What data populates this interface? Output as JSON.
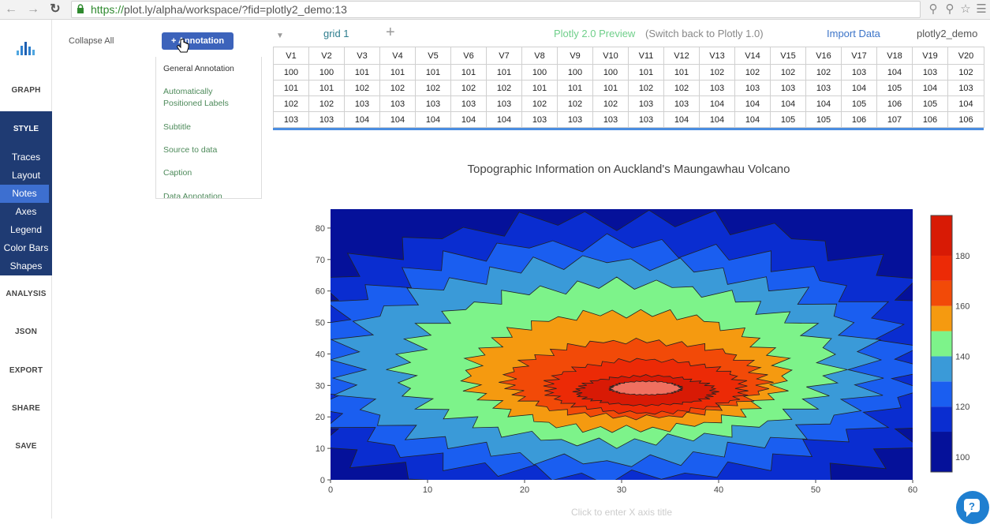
{
  "browser": {
    "url_scheme": "https://",
    "url_rest": "plot.ly/alpha/workspace/?fid=plotly2_demo:13",
    "back_icon": "back-arrow-icon",
    "forward_icon": "forward-arrow-icon",
    "reload_icon": "reload-icon"
  },
  "left_nav": {
    "graph": "GRAPH",
    "style": "STYLE",
    "style_items": [
      "Traces",
      "Layout",
      "Notes",
      "Axes",
      "Legend",
      "Color Bars",
      "Shapes"
    ],
    "active_item": "Notes",
    "analysis": "ANALYSIS",
    "json": "JSON",
    "export": "EXPORT",
    "share": "SHARE",
    "save": "SAVE"
  },
  "notes_panel": {
    "collapse_all": "Collapse All",
    "add_annotation": "+ Annotation",
    "menu_items": [
      "General Annotation",
      "Automatically Positioned Labels",
      "Subtitle",
      "Source to data",
      "Caption",
      "Data Annotation"
    ]
  },
  "grid_header": {
    "grid_name": "grid 1",
    "preview": "Plotly 2.0 Preview",
    "switch_back": "(Switch back to Plotly 1.0)",
    "import_data": "Import Data",
    "user": "plotly2_demo"
  },
  "grid": {
    "columns": [
      "V1",
      "V2",
      "V3",
      "V4",
      "V5",
      "V6",
      "V7",
      "V8",
      "V9",
      "V10",
      "V11",
      "V12",
      "V13",
      "V14",
      "V15",
      "V16",
      "V17",
      "V18",
      "V19",
      "V20"
    ],
    "rows": [
      [
        100,
        100,
        101,
        101,
        101,
        101,
        101,
        100,
        100,
        100,
        101,
        101,
        102,
        102,
        102,
        102,
        103,
        104,
        103,
        102
      ],
      [
        101,
        101,
        102,
        102,
        102,
        102,
        102,
        101,
        101,
        101,
        102,
        102,
        103,
        103,
        103,
        103,
        104,
        105,
        104,
        103
      ],
      [
        102,
        102,
        103,
        103,
        103,
        103,
        103,
        102,
        102,
        102,
        103,
        103,
        104,
        104,
        104,
        104,
        105,
        106,
        105,
        104
      ],
      [
        103,
        103,
        104,
        104,
        104,
        104,
        104,
        103,
        103,
        103,
        103,
        104,
        104,
        104,
        105,
        105,
        106,
        107,
        106,
        106
      ]
    ]
  },
  "chart_data": {
    "type": "contour",
    "title": "Topographic Information on Auckland's Maungawhau Volcano",
    "xlabel_placeholder": "Click to enter X axis title",
    "x_range": [
      0,
      60
    ],
    "y_range": [
      0,
      86
    ],
    "x_ticks": [
      "0",
      "10",
      "20",
      "30",
      "40",
      "50",
      "60"
    ],
    "y_ticks": [
      "0",
      "10",
      "20",
      "30",
      "40",
      "50",
      "60",
      "70",
      "80"
    ],
    "colorbar_ticks": [
      "100",
      "120",
      "140",
      "160",
      "180"
    ],
    "colorbar_range": [
      94,
      196
    ],
    "levels": [
      {
        "value": 100,
        "color": "#05119a"
      },
      {
        "value": 110,
        "color": "#0a2dd0"
      },
      {
        "value": 120,
        "color": "#1a5ef0"
      },
      {
        "value": 130,
        "color": "#3a9ad8"
      },
      {
        "value": 140,
        "color": "#7df38a"
      },
      {
        "value": 150,
        "color": "#f59a10"
      },
      {
        "value": 160,
        "color": "#f24a08"
      },
      {
        "value": 170,
        "color": "#ec2a06"
      },
      {
        "value": 180,
        "color": "#d81a05"
      },
      {
        "value": 190,
        "color": "#f07060"
      }
    ],
    "peak": {
      "x": 32.5,
      "y": 29
    }
  }
}
